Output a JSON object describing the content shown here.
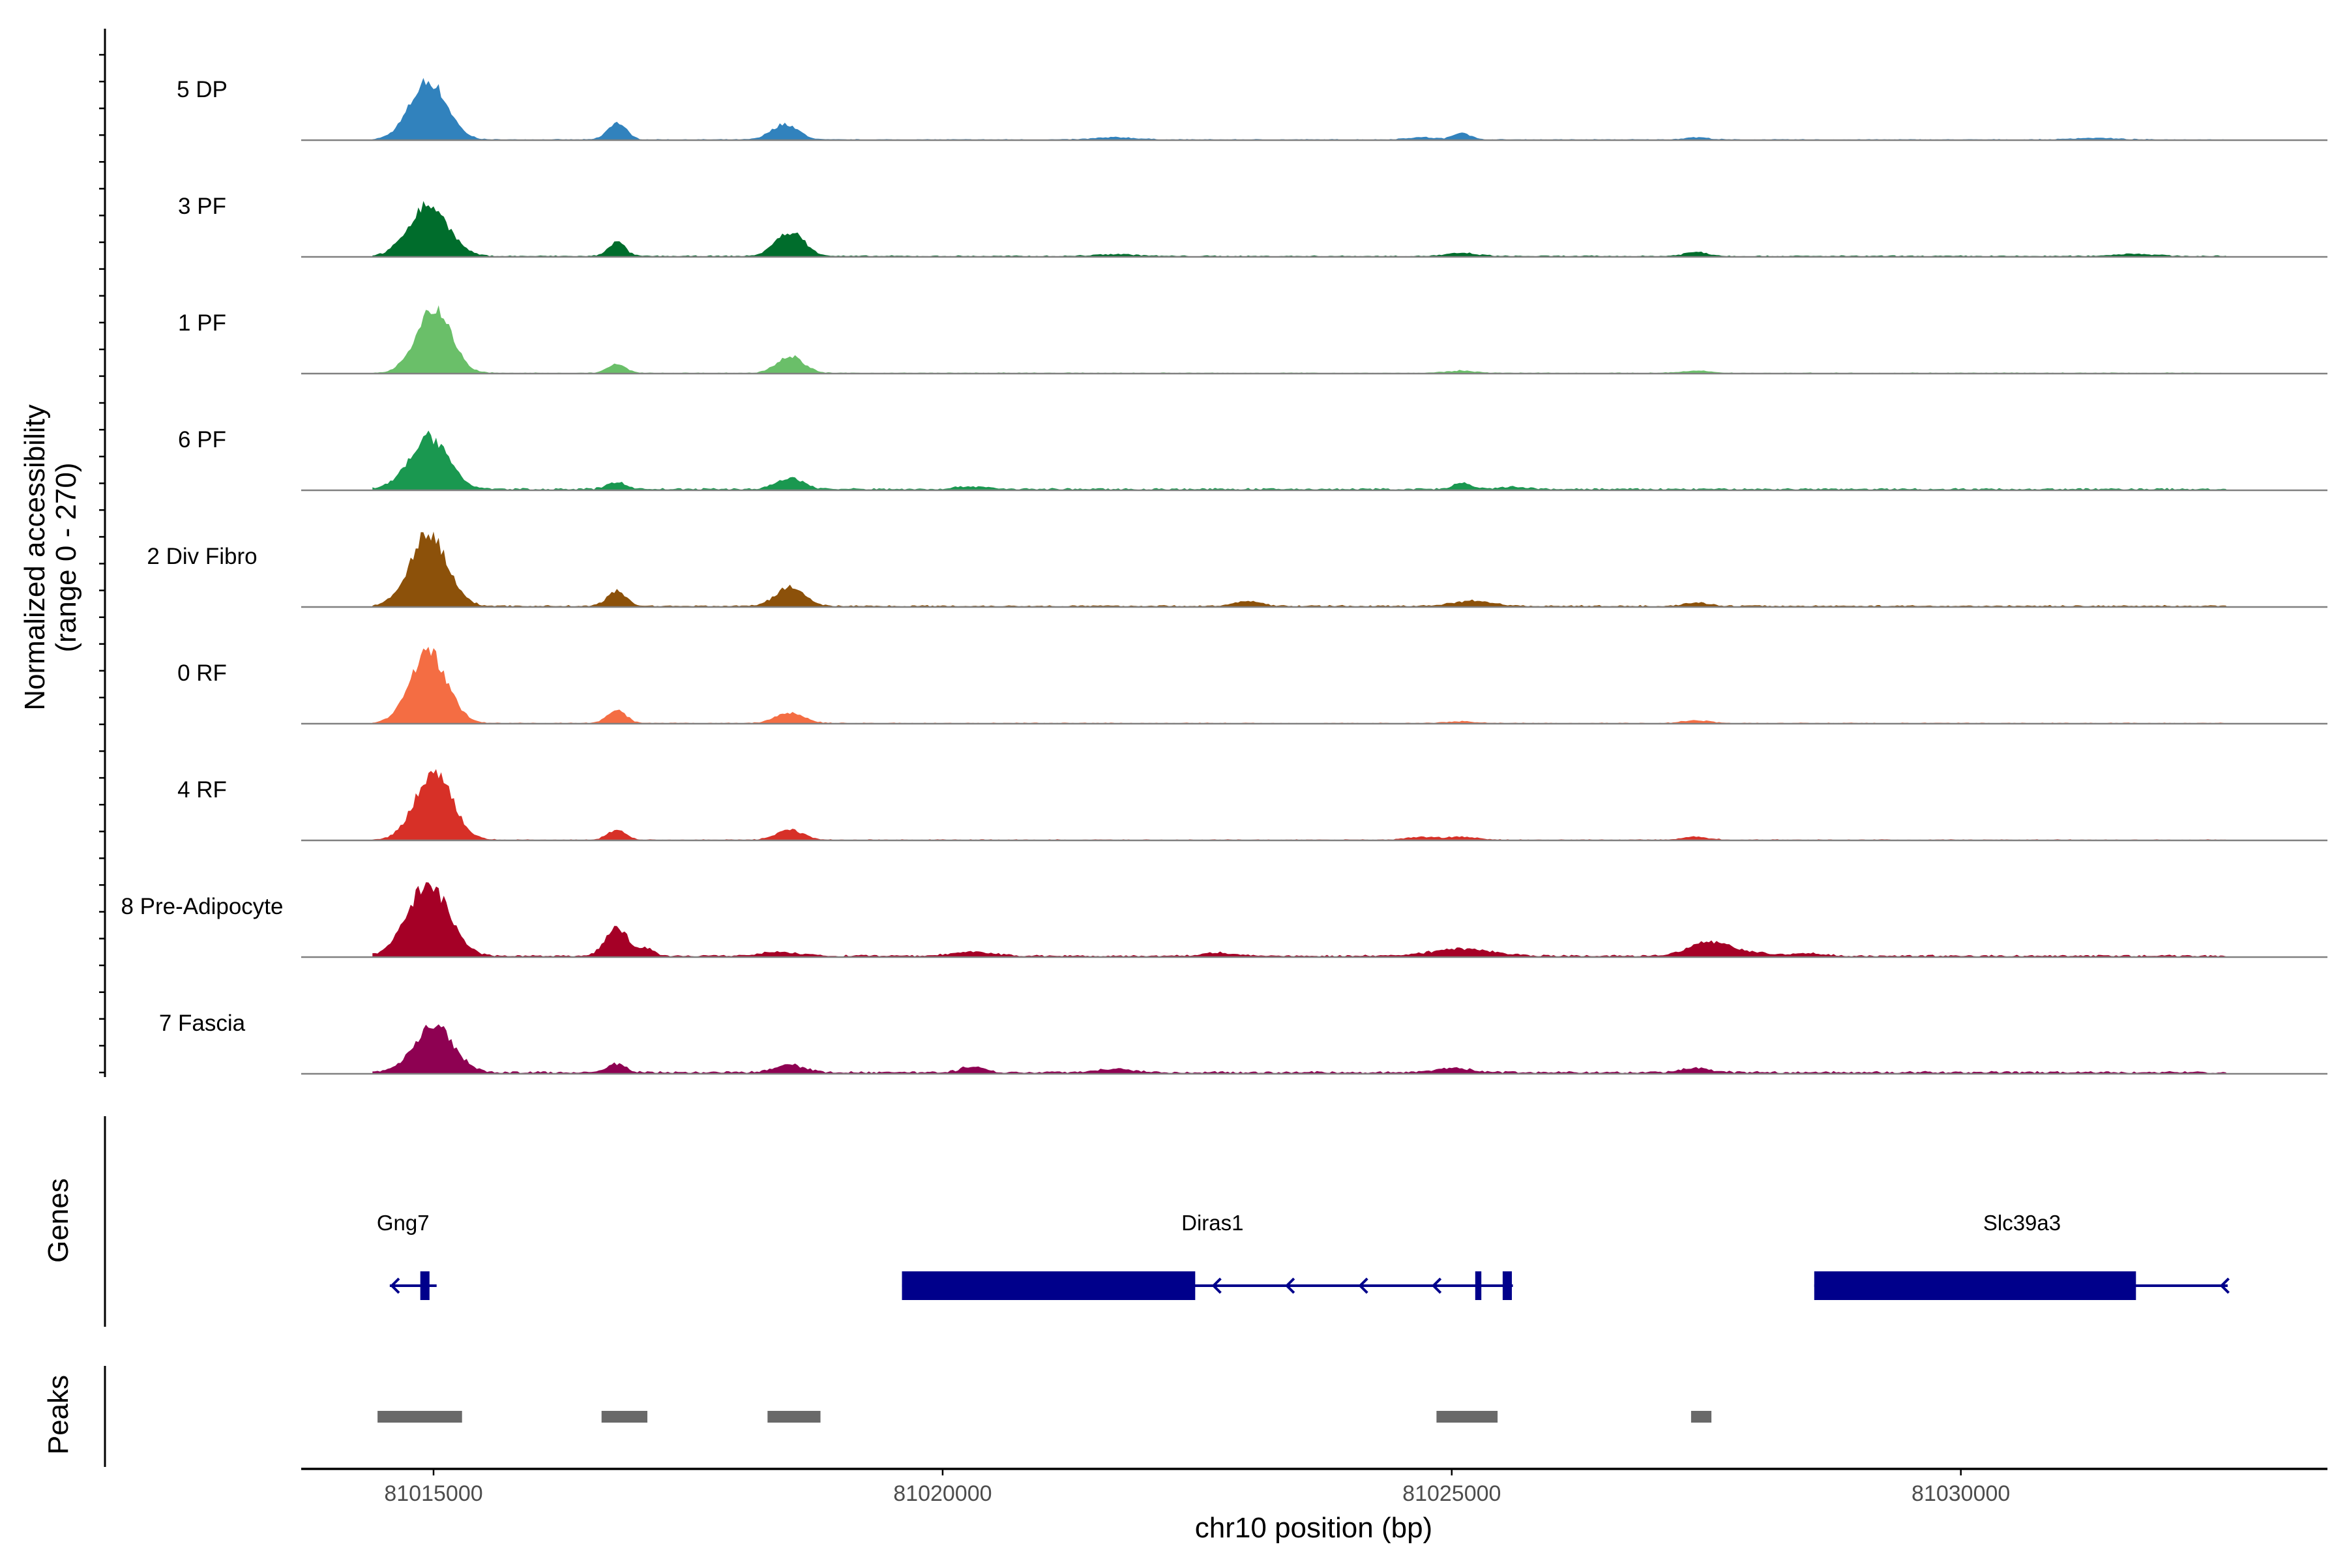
{
  "chart_data": {
    "type": "area",
    "title": "",
    "chromosome": "chr10",
    "xlabel": "chr10 position (bp)",
    "ylabel_line1": "Normalized accessibility",
    "ylabel_line2": "(range 0 - 270)",
    "ylim": [
      0,
      270
    ],
    "xlim": [
      81013700,
      81033600
    ],
    "x_ticks": [
      81015000,
      81020000,
      81025000,
      81030000
    ],
    "x_tick_labels": [
      "81015000",
      "81020000",
      "81025000",
      "81030000"
    ],
    "tracks": [
      {
        "name": "5 DP",
        "color": "#3182bd",
        "peaks": [
          [
            81014950,
            205,
            180
          ],
          [
            81016800,
            60,
            90
          ],
          [
            81018450,
            55,
            130
          ],
          [
            81021700,
            8,
            200
          ],
          [
            81024700,
            8,
            150
          ],
          [
            81025100,
            25,
            80
          ],
          [
            81027400,
            8,
            120
          ],
          [
            81031300,
            6,
            200
          ]
        ],
        "baseline": 3
      },
      {
        "name": "3 PF",
        "color": "#006d2c",
        "peaks": [
          [
            81014950,
            180,
            190
          ],
          [
            81016800,
            50,
            80
          ],
          [
            81018500,
            85,
            140
          ],
          [
            81021700,
            7,
            200
          ],
          [
            81025100,
            10,
            150
          ],
          [
            81027400,
            14,
            120
          ],
          [
            81031700,
            8,
            200
          ]
        ],
        "baseline": 4
      },
      {
        "name": "1 PF",
        "color": "#6abf69",
        "peaks": [
          [
            81015000,
            230,
            170
          ],
          [
            81016800,
            30,
            90
          ],
          [
            81018500,
            60,
            130
          ],
          [
            81025100,
            8,
            150
          ],
          [
            81027400,
            7,
            150
          ]
        ],
        "baseline": 3
      },
      {
        "name": "6 PF",
        "color": "#1a9850",
        "peaks": [
          [
            81014950,
            180,
            190
          ],
          [
            81016800,
            25,
            90
          ],
          [
            81018500,
            40,
            130
          ],
          [
            81020300,
            10,
            150
          ],
          [
            81025100,
            20,
            90
          ],
          [
            81025600,
            8,
            120
          ]
        ],
        "baseline": 6
      },
      {
        "name": "2 Div Fibro",
        "color": "#8c510a",
        "peaks": [
          [
            81014950,
            255,
            180
          ],
          [
            81016800,
            55,
            90
          ],
          [
            81018500,
            65,
            140
          ],
          [
            81023000,
            18,
            120
          ],
          [
            81025200,
            18,
            200
          ],
          [
            81027400,
            12,
            120
          ]
        ],
        "baseline": 5
      },
      {
        "name": "0 RF",
        "color": "#f46d43",
        "peaks": [
          [
            81014950,
            250,
            180
          ],
          [
            81016800,
            45,
            90
          ],
          [
            81018500,
            35,
            140
          ],
          [
            81025100,
            6,
            150
          ],
          [
            81027400,
            10,
            130
          ]
        ],
        "baseline": 3
      },
      {
        "name": "4 RF",
        "color": "#d73027",
        "peaks": [
          [
            81015000,
            240,
            180
          ],
          [
            81016800,
            35,
            90
          ],
          [
            81018500,
            35,
            130
          ],
          [
            81024700,
            10,
            150
          ],
          [
            81025100,
            10,
            150
          ],
          [
            81027400,
            10,
            130
          ]
        ],
        "baseline": 3
      },
      {
        "name": "8 Pre-Adipocyte",
        "color": "#a50026",
        "peaks": [
          [
            81014950,
            255,
            200
          ],
          [
            81016800,
            100,
            110
          ],
          [
            81017100,
            25,
            70
          ],
          [
            81018400,
            14,
            200
          ],
          [
            81020300,
            14,
            200
          ],
          [
            81022700,
            12,
            150
          ],
          [
            81025100,
            25,
            300
          ],
          [
            81027500,
            50,
            180
          ],
          [
            81027900,
            15,
            200
          ],
          [
            81028500,
            10,
            150
          ]
        ],
        "baseline": 6
      },
      {
        "name": "7 Fascia",
        "color": "#8e0152",
        "peaks": [
          [
            81015000,
            165,
            190
          ],
          [
            81016800,
            30,
            90
          ],
          [
            81018500,
            28,
            140
          ],
          [
            81020300,
            20,
            120
          ],
          [
            81021700,
            12,
            200
          ],
          [
            81025000,
            14,
            200
          ],
          [
            81027400,
            14,
            150
          ]
        ],
        "baseline": 7
      }
    ],
    "genes_title": "Genes",
    "genes": [
      {
        "name": "Gng7",
        "start": 81014570,
        "end": 81015030,
        "strand": "-",
        "exons": [
          [
            81014870,
            81014960
          ]
        ],
        "label_x": 81014700
      },
      {
        "name": "Diras1",
        "start": 81019600,
        "end": 81025600,
        "strand": "-",
        "exons": [
          [
            81019600,
            81022480
          ],
          [
            81025230,
            81025290
          ],
          [
            81025500,
            81025590
          ]
        ],
        "label_x": 81022650
      },
      {
        "name": "Slc39a3",
        "start": 81028560,
        "end": 81032620,
        "strand": "-",
        "exons": [
          [
            81028560,
            81031720
          ]
        ],
        "label_x": 81030600
      }
    ],
    "peaks_title": "Peaks",
    "peak_regions": [
      [
        81014450,
        81015280
      ],
      [
        81016650,
        81017100
      ],
      [
        81018280,
        81018800
      ],
      [
        81024850,
        81025450
      ],
      [
        81027350,
        81027550
      ]
    ],
    "colors": {
      "gene": "#00008b",
      "peak_region": "#696969",
      "axis": "#000000",
      "baseline": "#808080"
    }
  }
}
